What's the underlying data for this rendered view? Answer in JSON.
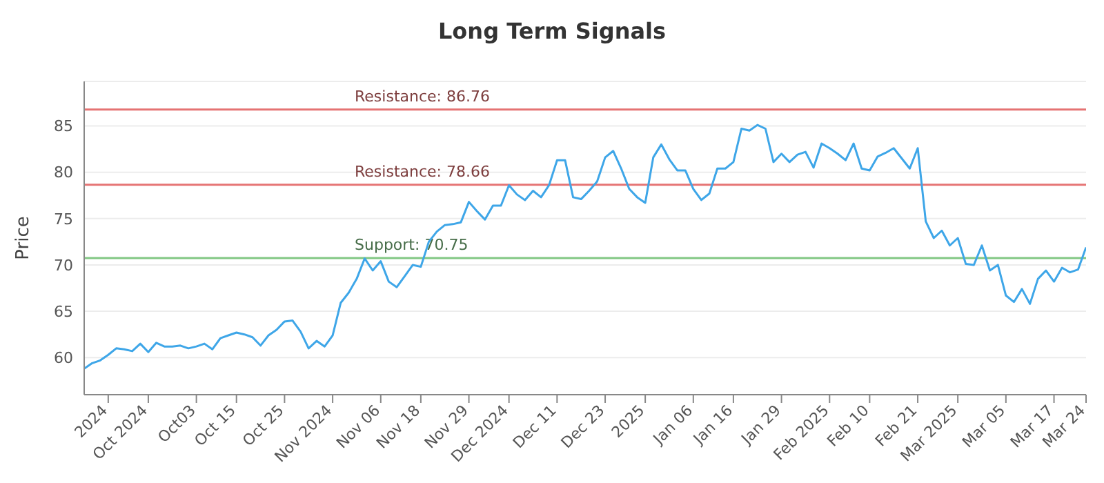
{
  "chart_data": {
    "type": "line",
    "title": "Long Term Signals",
    "ylabel": "Price",
    "categories": [
      null,
      null,
      null,
      "2024",
      null,
      null,
      null,
      null,
      "Oct 2024",
      null,
      null,
      null,
      null,
      null,
      "Oct03",
      null,
      null,
      null,
      null,
      "Oct 15",
      null,
      null,
      null,
      null,
      null,
      "Oct 25",
      null,
      null,
      null,
      null,
      null,
      "Nov 2024",
      null,
      null,
      null,
      null,
      null,
      "Nov 06",
      null,
      null,
      null,
      null,
      "Nov 18",
      null,
      null,
      null,
      null,
      null,
      "Nov 29",
      null,
      null,
      null,
      null,
      "Dec 2024",
      null,
      null,
      null,
      null,
      null,
      "Dec 11",
      null,
      null,
      null,
      null,
      null,
      "Dec 23",
      null,
      null,
      null,
      null,
      "2025",
      null,
      null,
      null,
      null,
      null,
      "Jan 06",
      null,
      null,
      null,
      null,
      "Jan 16",
      null,
      null,
      null,
      null,
      null,
      "Jan 29",
      null,
      null,
      null,
      null,
      null,
      "Feb 2025",
      null,
      null,
      null,
      null,
      "Feb 10",
      null,
      null,
      null,
      null,
      null,
      "Feb 21",
      null,
      null,
      null,
      null,
      "Mar 2025",
      null,
      null,
      null,
      null,
      null,
      "Mar 05",
      null,
      null,
      null,
      null,
      null,
      "Mar 17",
      null,
      null,
      null,
      "Mar 24"
    ],
    "series": [
      {
        "color": "#3ea6e8",
        "values": [
          58.8,
          59.4,
          59.7,
          60.3,
          61.0,
          60.9,
          60.7,
          61.5,
          60.6,
          61.6,
          61.2,
          61.2,
          61.3,
          61.0,
          61.2,
          61.5,
          60.9,
          62.1,
          62.4,
          62.7,
          62.5,
          62.2,
          61.3,
          62.4,
          63.0,
          63.9,
          64.0,
          62.8,
          61.0,
          61.8,
          61.2,
          62.4,
          65.9,
          67.0,
          68.5,
          70.7,
          69.4,
          70.4,
          68.2,
          67.6,
          68.8,
          70.0,
          69.8,
          72.5,
          73.6,
          74.3,
          74.4,
          74.6,
          76.8,
          75.8,
          74.9,
          76.4,
          76.4,
          78.6,
          77.6,
          77.0,
          78.0,
          77.3,
          78.6,
          81.3,
          81.3,
          77.3,
          77.1,
          78.0,
          79.0,
          81.6,
          82.3,
          80.4,
          78.2,
          77.3,
          76.7,
          81.6,
          83.0,
          81.4,
          80.2,
          80.2,
          78.2,
          77.0,
          77.7,
          80.4,
          80.4,
          81.1,
          84.7,
          84.5,
          85.1,
          84.7,
          81.1,
          82.0,
          81.1,
          81.9,
          82.2,
          80.5,
          83.1,
          82.6,
          82.0,
          81.3,
          83.1,
          80.4,
          80.2,
          81.7,
          82.1,
          82.6,
          81.5,
          80.4,
          82.6,
          74.7,
          72.9,
          73.7,
          72.1,
          72.9,
          70.1,
          70.0,
          72.1,
          69.4,
          70.0,
          66.7,
          66.0,
          67.4,
          65.8,
          68.5,
          69.4,
          68.2,
          69.7,
          69.2,
          69.5,
          71.9
        ]
      }
    ],
    "ylim": [
      56,
      89.8
    ],
    "yticks": [
      60,
      65,
      70,
      75,
      80,
      85
    ],
    "grid": "y",
    "marker": "none",
    "line_style": "solid",
    "ref_lines": [
      {
        "axis": "y",
        "value": 86.76,
        "label": "Resistance: 86.76",
        "color": "#e57373"
      },
      {
        "axis": "y",
        "value": 78.66,
        "label": "Resistance: 78.66",
        "color": "#e57373"
      },
      {
        "axis": "y",
        "value": 70.75,
        "label": "Support: 70.75",
        "color": "#81c784"
      }
    ]
  }
}
